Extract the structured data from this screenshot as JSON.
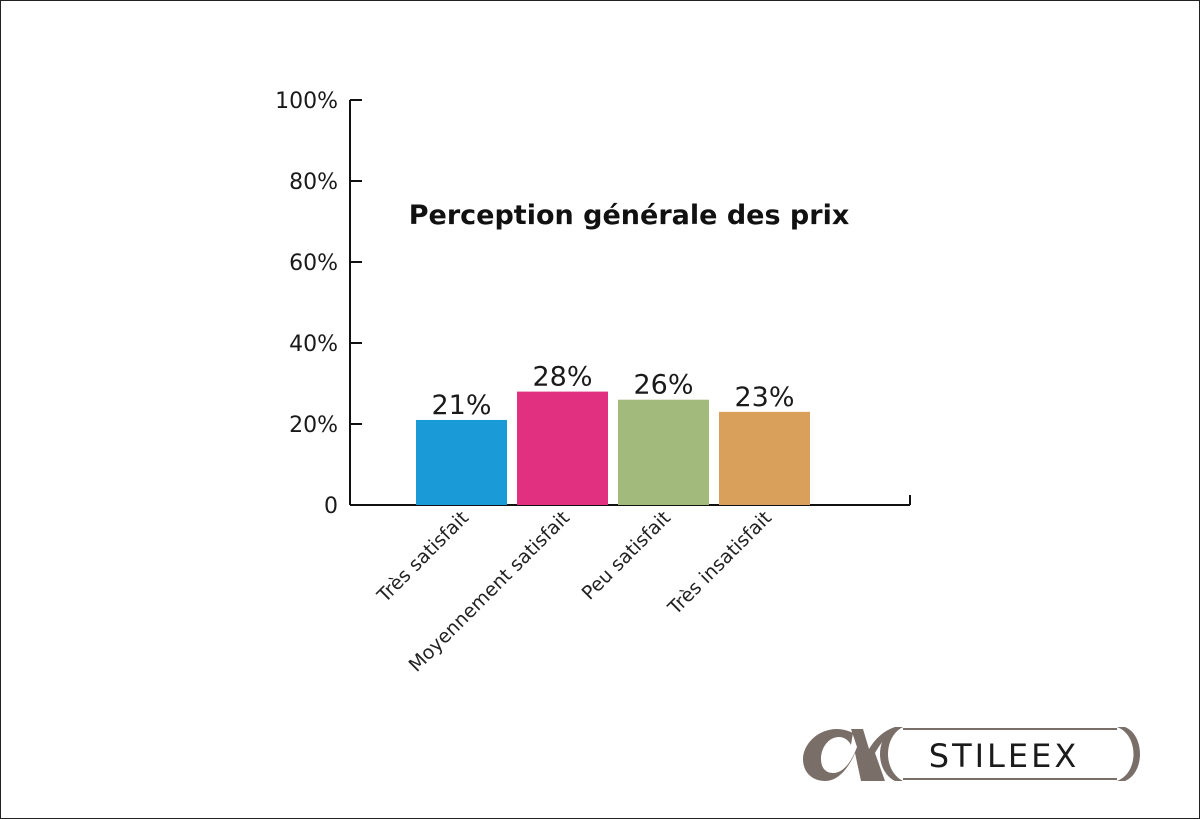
{
  "chart_data": {
    "type": "bar",
    "title": "Perception générale des prix",
    "categories": [
      "Très satisfait",
      "Moyennement satisfait",
      "Peu satisfait",
      "Très insatisfait"
    ],
    "values": [
      21,
      28,
      26,
      23
    ],
    "value_labels": [
      "21%",
      "28%",
      "26%",
      "23%"
    ],
    "colors": [
      "#1a9ad6",
      "#e0307f",
      "#a2bb7d",
      "#d9a05c"
    ],
    "ylim": [
      0,
      100
    ],
    "yticks": [
      0,
      20,
      40,
      60,
      80,
      100
    ],
    "ytick_labels": [
      "0",
      "20%",
      "40%",
      "60%",
      "80%",
      "100%"
    ],
    "xlabel": "",
    "ylabel": "",
    "grid": false
  },
  "logo": {
    "text": "STILEEX",
    "mark": "α",
    "color": "#7a6e68"
  }
}
